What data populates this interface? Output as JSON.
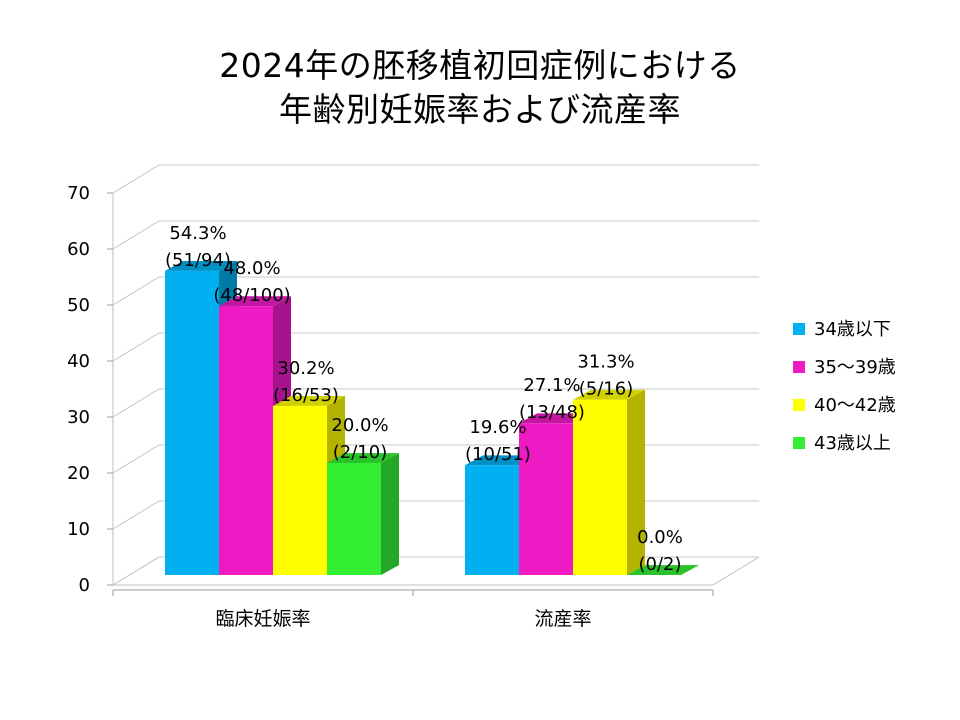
{
  "chart_data": {
    "type": "bar",
    "title_line1": "2024年の胚移植初回症例における",
    "title_line2": "年齢別妊娠率および流産率",
    "categories": [
      "臨床妊娠率",
      "流産率"
    ],
    "ylim": [
      0,
      70
    ],
    "yticks": [
      "0",
      "10",
      "20",
      "30",
      "40",
      "50",
      "60",
      "70"
    ],
    "grid": true,
    "legend_position": "right",
    "series": [
      {
        "name": "34歳以下",
        "color": "#00b0f0",
        "values": [
          54.3,
          19.6
        ],
        "labels": [
          [
            "54.3%",
            "(51/94)"
          ],
          [
            "19.6%",
            "(10/51)"
          ]
        ]
      },
      {
        "name": "35～39歳",
        "color": "#ee1bc5",
        "values": [
          48.0,
          27.1
        ],
        "labels": [
          [
            "48.0%",
            "(48/100)"
          ],
          [
            "27.1%",
            "(13/48)"
          ]
        ]
      },
      {
        "name": "40～42歳",
        "color": "#ffff00",
        "values": [
          30.2,
          31.3
        ],
        "labels": [
          [
            "30.2%",
            "(16/53)"
          ],
          [
            "31.3%",
            "(5/16)"
          ]
        ]
      },
      {
        "name": "43歳以上",
        "color": "#33ee33",
        "values": [
          20.0,
          0.0
        ],
        "labels": [
          [
            "20.0%",
            "(2/10)"
          ],
          [
            "0.0%",
            "(0/2)"
          ]
        ]
      }
    ]
  }
}
